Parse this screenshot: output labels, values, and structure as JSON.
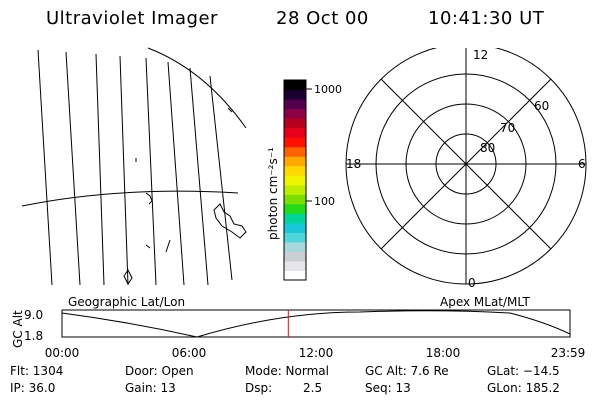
{
  "header": {
    "instrument": "Ultraviolet Imager",
    "date": "28 Oct 00",
    "time": "10:41:30 UT"
  },
  "colorbar": {
    "label": "photon cm⁻²s⁻¹",
    "ticks": [
      "1000",
      "100"
    ],
    "colors": [
      "#ffffff",
      "#e4e4ea",
      "#c9cfd4",
      "#a8d8dc",
      "#4ed6dc",
      "#18c8d8",
      "#00d496",
      "#22dc1a",
      "#7ade00",
      "#c0ec00",
      "#f0f400",
      "#ffd800",
      "#ffa800",
      "#ff6000",
      "#ff1000",
      "#e8001a",
      "#b8001e",
      "#8c0046",
      "#52004e",
      "#1a0030",
      "#000000"
    ]
  },
  "polar_plot": {
    "mlt_labels": {
      "top": "12",
      "left": "18",
      "right": "6",
      "bottom": "0"
    },
    "lat_labels": [
      "80",
      "70",
      "60"
    ]
  },
  "timeline": {
    "left_label": "Geographic Lat/Lon",
    "right_label": "Apex MLat/MLT",
    "y_axis_label": "GC Alt",
    "y_ticks": [
      "9.0",
      "1.8"
    ],
    "x_ticks": [
      "00:00",
      "06:00",
      "12:00",
      "18:00",
      "23:59"
    ],
    "marker_color": "#ff0000",
    "marker_time": "10:41:30"
  },
  "status": {
    "flt": "Flt: 1304",
    "ip": "IP: 36.0",
    "door": "Door: Open",
    "gain": "Gain: 13",
    "mode": "Mode: Normal",
    "dsp_label": "Dsp:",
    "dsp_value": "2.5",
    "gc_alt": "GC Alt: 7.6 Re",
    "seq": "Seq: 13",
    "glat": "GLat: −14.5",
    "glon": "GLon: 185.2"
  }
}
